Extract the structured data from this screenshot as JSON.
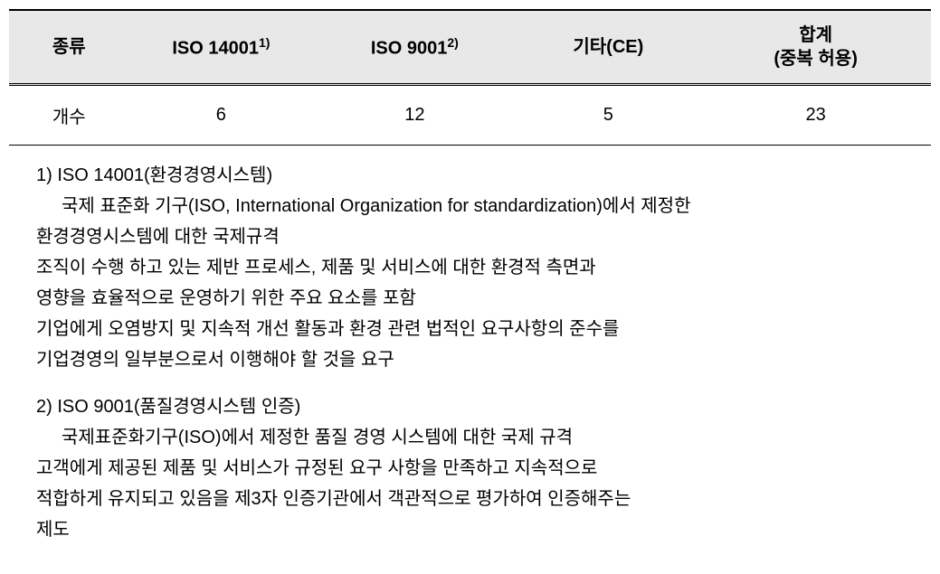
{
  "table": {
    "headers": {
      "type": "종류",
      "iso14001": "ISO 14001",
      "iso14001_sup": "1)",
      "iso9001": "ISO 9001",
      "iso9001_sup": "2)",
      "other": "기타(CE)",
      "total_line1": "합계",
      "total_line2": "(중복 허용)"
    },
    "row": {
      "label": "개수",
      "iso14001": "6",
      "iso9001": "12",
      "other": "5",
      "total": "23"
    },
    "styling": {
      "header_bg": "#e8e8e8",
      "border_color": "#000000",
      "font_size_header": 20,
      "font_size_cell": 20,
      "top_border_width": 2,
      "header_bottom_border": "double"
    }
  },
  "footnotes": {
    "note1": {
      "marker": "1)",
      "title": "ISO 14001(환경경영시스템)",
      "line1": "국제 표준화 기구(ISO, International Organization for standardization)에서 제정한",
      "line2": "환경경영시스템에 대한 국제규격",
      "line3": "조직이 수행 하고 있는 제반 프로세스, 제품 및 서비스에 대한 환경적 측면과",
      "line4": "영향을 효율적으로 운영하기 위한 주요 요소를 포함",
      "line5": "기업에게 오염방지 및 지속적 개선 활동과 환경 관련 법적인 요구사항의 준수를",
      "line6": "기업경영의 일부분으로서 이행해야 할 것을 요구"
    },
    "note2": {
      "marker": "2)",
      "title": "ISO 9001(품질경영시스템 인증)",
      "line1": "국제표준화기구(ISO)에서 제정한 품질 경영 시스템에 대한 국제 규격",
      "line2": "고객에게 제공된 제품 및 서비스가 규정된 요구 사항을 만족하고 지속적으로",
      "line3": "적합하게 유지되고 있음을 제3자 인증기관에서 객관적으로 평가하여 인증해주는",
      "line4": "제도"
    },
    "styling": {
      "font_size": 20,
      "line_height": 1.7,
      "indent": 28
    }
  }
}
